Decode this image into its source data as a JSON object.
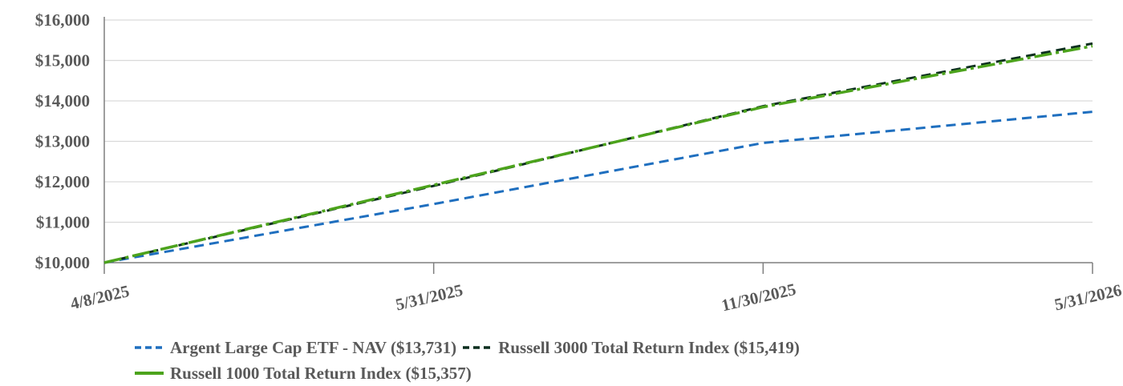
{
  "chart_data": {
    "type": "line",
    "x_tick_labels": [
      "4/8/2025",
      "5/31/2025",
      "11/30/2025",
      "5/31/2026"
    ],
    "y_tick_labels": [
      "$10,000",
      "$11,000",
      "$12,000",
      "$13,000",
      "$14,000",
      "$15,000",
      "$16,000"
    ],
    "ylim": [
      10000,
      16000
    ],
    "grid": "horizontal",
    "legend_position": "bottom",
    "series": [
      {
        "name": "Argent Large Cap ETF - NAV ($13,731)",
        "color": "#1f6fbf",
        "style": "dashed",
        "x": [
          "4/8/2025",
          "5/31/2025",
          "11/30/2025",
          "5/31/2026"
        ],
        "values": [
          10000,
          11450,
          12960,
          13731
        ]
      },
      {
        "name": "Russell 3000 Total Return Index ($15,419)",
        "color": "#0b2e1f",
        "style": "dashed",
        "x": [
          "4/8/2025",
          "5/31/2025",
          "11/30/2025",
          "5/31/2026"
        ],
        "values": [
          10000,
          11900,
          13870,
          15419
        ]
      },
      {
        "name": "Russell 1000 Total Return Index ($15,357)",
        "color": "#4ca31c",
        "style": "dashdot",
        "x": [
          "4/8/2025",
          "5/31/2025",
          "11/30/2025",
          "5/31/2026"
        ],
        "values": [
          10000,
          11920,
          13850,
          15357
        ]
      }
    ]
  },
  "legend": {
    "rows": [
      [
        0,
        1
      ],
      [
        2
      ]
    ]
  }
}
